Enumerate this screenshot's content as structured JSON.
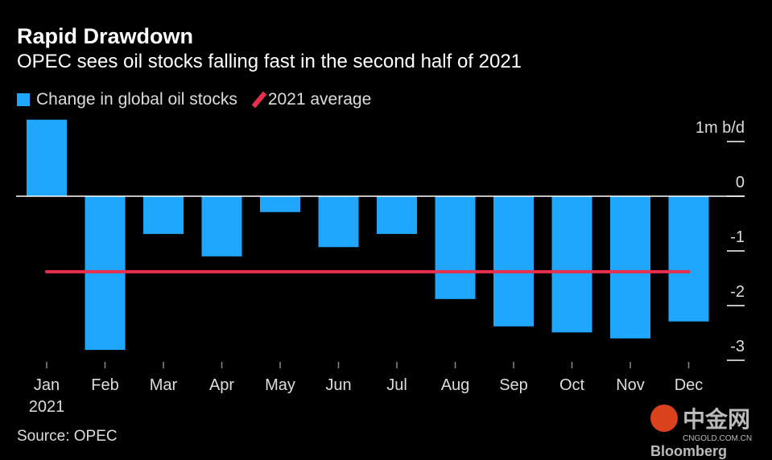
{
  "title": "Rapid Drawdown",
  "subtitle": "OPEC sees oil stocks falling fast in the second half of 2021",
  "source": "Source: OPEC",
  "watermark": {
    "name": "中金网",
    "domain": "CNGOLD.COM.CN",
    "brand": "Bloomberg"
  },
  "colors": {
    "bar": "#1ea7fd",
    "average": "#e8304e"
  },
  "chart_data": {
    "type": "bar",
    "categories": [
      "Jan",
      "Feb",
      "Mar",
      "Apr",
      "May",
      "Jun",
      "Jul",
      "Aug",
      "Sep",
      "Oct",
      "Nov",
      "Dec"
    ],
    "year_label": "2021",
    "series": [
      {
        "name": "Change in global oil stocks",
        "values": [
          1.4,
          -2.81,
          -0.69,
          -1.1,
          -0.29,
          -0.93,
          -0.69,
          -1.88,
          -2.38,
          -2.49,
          -2.6,
          -2.29
        ]
      }
    ],
    "average": {
      "name": "2021 average",
      "value": -1.38
    },
    "ylabel": "m b/d",
    "yticks": [
      1,
      0,
      -1,
      -2,
      -3
    ],
    "ytick_labels": [
      "1m b/d",
      "0",
      "-1",
      "-2",
      "-3"
    ],
    "ylim": [
      -3.1,
      1.5
    ],
    "legend": "top-left"
  }
}
